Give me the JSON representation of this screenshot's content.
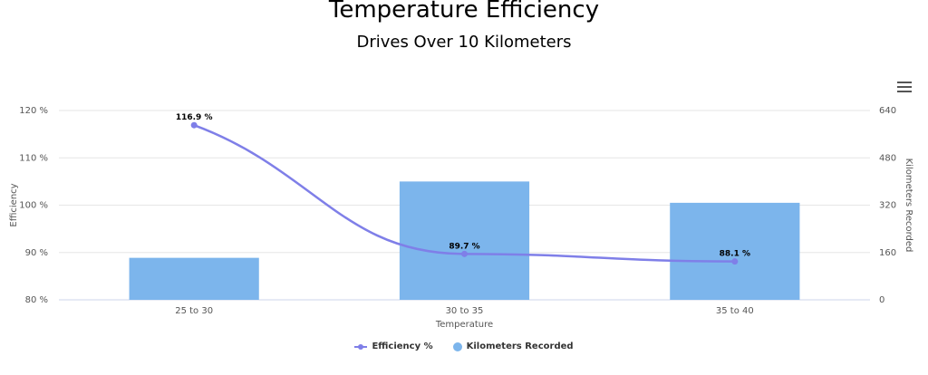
{
  "chart_data": {
    "type": "bar",
    "title": "Temperature Efficiency",
    "subtitle": "Drives Over 10 Kilometers",
    "xlabel": "Temperature",
    "categories": [
      "25 to 30",
      "30 to 35",
      "35 to 40"
    ],
    "y_left": {
      "label": "Efficiency",
      "range": [
        80,
        120
      ],
      "ticks": [
        "80 %",
        "90 %",
        "100 %",
        "110 %",
        "120 %"
      ]
    },
    "y_right": {
      "label": "Kilometers Recorded",
      "range": [
        0,
        640
      ],
      "ticks": [
        "0",
        "160",
        "320",
        "480",
        "640"
      ]
    },
    "series": [
      {
        "name": "Kilometers Recorded",
        "type": "bar",
        "axis": "right",
        "color": "#7cb5ec",
        "values": [
          142,
          400,
          328
        ]
      },
      {
        "name": "Efficiency %",
        "type": "line",
        "axis": "left",
        "color": "#7f7fe8",
        "values": [
          116.9,
          89.7,
          88.1
        ],
        "labels": [
          "116.9 %",
          "89.7 %",
          "88.1 %"
        ]
      }
    ],
    "legend": [
      "Efficiency %",
      "Kilometers Recorded"
    ],
    "legend_position": "bottom-center",
    "grid": true
  }
}
